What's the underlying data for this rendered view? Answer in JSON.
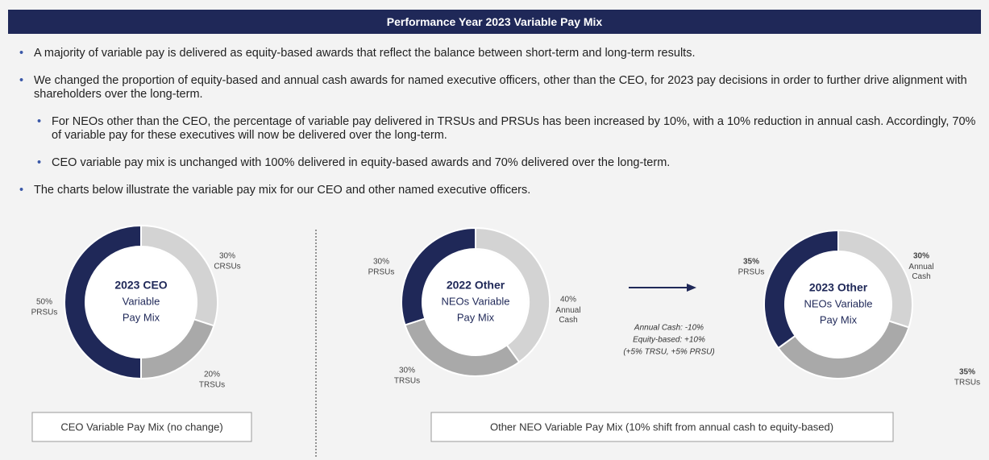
{
  "header": {
    "title": "Performance Year 2023 Variable Pay Mix"
  },
  "bullets": [
    {
      "level": 1,
      "text": "A majority of variable pay is delivered as equity-based awards that reflect the balance between short-term and long-term results."
    },
    {
      "level": 1,
      "text": "We changed the proportion of equity-based and annual cash awards for named executive officers, other than the CEO, for 2023 pay decisions in order to further drive alignment with shareholders over the long-term."
    },
    {
      "level": 2,
      "text": "For NEOs other than the CEO, the percentage of variable pay delivered in TRSUs and PRSUs has been increased by 10%, with a 10% reduction in annual cash. Accordingly, 70% of variable pay for these executives will now be delivered over the long-term."
    },
    {
      "level": 2,
      "text": "CEO variable pay mix is unchanged with 100% delivered in equity-based awards and 70% delivered over the long-term."
    },
    {
      "level": 1,
      "text": "The charts below illustrate the variable pay mix for our CEO and other named executive officers."
    }
  ],
  "charts": [
    {
      "type": "donut",
      "center": [
        "2023 CEO",
        "Variable",
        "Pay Mix"
      ],
      "names": [
        "CRSUs",
        "TRSUs",
        "PRSUs"
      ],
      "values": [
        30,
        20,
        50
      ],
      "value_labels": [
        "30%",
        "20%",
        "50%"
      ],
      "colors": [
        "#d3d3d3",
        "#a9a9a9",
        "#1f2858"
      ]
    },
    {
      "type": "donut",
      "center": [
        "2022 Other",
        "NEOs Variable",
        "Pay Mix"
      ],
      "names": [
        "Annual Cash",
        "TRSUs",
        "PRSUs"
      ],
      "values": [
        40,
        30,
        30
      ],
      "value_labels": [
        "40%",
        "30%",
        "30%"
      ],
      "colors": [
        "#d3d3d3",
        "#a9a9a9",
        "#1f2858"
      ]
    },
    {
      "type": "donut",
      "center": [
        "2023 Other",
        "NEOs Variable",
        "Pay Mix"
      ],
      "names": [
        "Annual Cash",
        "TRSUs",
        "PRSUs"
      ],
      "values": [
        30,
        35,
        35
      ],
      "value_labels": [
        "30%",
        "35%",
        "35%"
      ],
      "colors": [
        "#d3d3d3",
        "#a9a9a9",
        "#1f2858"
      ]
    }
  ],
  "shift_note": [
    "Annual Cash: -10%",
    "Equity-based: +10%",
    "(+5% TRSU, +5% PRSU)"
  ],
  "captions": [
    "CEO Variable Pay Mix (no change)",
    "Other NEO Variable Pay Mix (10% shift from annual cash to equity-based)"
  ]
}
